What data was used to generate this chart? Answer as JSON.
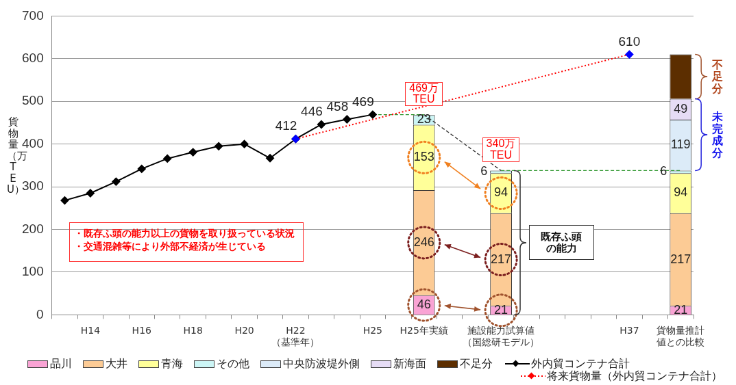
{
  "chart_data": {
    "type": "bar",
    "stacked": true,
    "ylabel": "貨物量（万TEU）",
    "categories": [
      null,
      "H14",
      null,
      "H16",
      null,
      "H18",
      null,
      "H20",
      null,
      "H22（基準年）",
      null,
      null,
      "H25",
      null,
      "H25年実績",
      null,
      null,
      "施設能力試算値（国総研モデル）",
      null,
      null,
      null,
      null,
      "H37",
      null,
      "貨物量推計値との比較"
    ],
    "series": [
      {
        "name": "品川",
        "color": "#f9a3d4",
        "values": [
          null,
          null,
          null,
          null,
          null,
          null,
          null,
          null,
          null,
          null,
          null,
          null,
          null,
          null,
          46,
          null,
          null,
          21,
          null,
          null,
          null,
          null,
          null,
          null,
          21
        ],
        "value_labels": [
          null,
          null,
          null,
          null,
          null,
          null,
          null,
          null,
          null,
          null,
          null,
          null,
          null,
          null,
          "46",
          null,
          null,
          "21",
          null,
          null,
          null,
          null,
          null,
          null,
          "21"
        ]
      },
      {
        "name": "大井",
        "color": "#fccb95",
        "values": [
          null,
          null,
          null,
          null,
          null,
          null,
          null,
          null,
          null,
          null,
          null,
          null,
          null,
          null,
          246,
          null,
          null,
          217,
          null,
          null,
          null,
          null,
          null,
          null,
          217
        ],
        "value_labels": [
          null,
          null,
          null,
          null,
          null,
          null,
          null,
          null,
          null,
          null,
          null,
          null,
          null,
          null,
          "246",
          null,
          null,
          "217",
          null,
          null,
          null,
          null,
          null,
          null,
          "217"
        ]
      },
      {
        "name": "青海",
        "color": "#ffff99",
        "values": [
          null,
          null,
          null,
          null,
          null,
          null,
          null,
          null,
          null,
          null,
          null,
          null,
          null,
          null,
          153,
          null,
          null,
          94,
          null,
          null,
          null,
          null,
          null,
          null,
          94
        ],
        "value_labels": [
          null,
          null,
          null,
          null,
          null,
          null,
          null,
          null,
          null,
          null,
          null,
          null,
          null,
          null,
          "153",
          null,
          null,
          "94",
          null,
          null,
          null,
          null,
          null,
          null,
          "94"
        ]
      },
      {
        "name": "その他",
        "color": "#ccf5f5",
        "values": [
          null,
          null,
          null,
          null,
          null,
          null,
          null,
          null,
          null,
          null,
          null,
          null,
          null,
          null,
          23,
          null,
          null,
          6,
          null,
          null,
          null,
          null,
          null,
          null,
          6
        ],
        "value_labels": [
          null,
          null,
          null,
          null,
          null,
          null,
          null,
          null,
          null,
          null,
          null,
          null,
          null,
          null,
          "23",
          null,
          null,
          "6",
          null,
          null,
          null,
          null,
          null,
          null,
          "6"
        ]
      },
      {
        "name": "中央防波堤外側",
        "color": "#dcebf8",
        "values": [
          null,
          null,
          null,
          null,
          null,
          null,
          null,
          null,
          null,
          null,
          null,
          null,
          null,
          null,
          null,
          null,
          null,
          null,
          null,
          null,
          null,
          null,
          null,
          null,
          119
        ],
        "value_labels": [
          null,
          null,
          null,
          null,
          null,
          null,
          null,
          null,
          null,
          null,
          null,
          null,
          null,
          null,
          null,
          null,
          null,
          null,
          null,
          null,
          null,
          null,
          null,
          null,
          "119"
        ]
      },
      {
        "name": "新海面",
        "color": "#e6dcf5",
        "values": [
          null,
          null,
          null,
          null,
          null,
          null,
          null,
          null,
          null,
          null,
          null,
          null,
          null,
          null,
          null,
          null,
          null,
          null,
          null,
          null,
          null,
          null,
          null,
          null,
          49
        ],
        "value_labels": [
          null,
          null,
          null,
          null,
          null,
          null,
          null,
          null,
          null,
          null,
          null,
          null,
          null,
          null,
          null,
          null,
          null,
          null,
          null,
          null,
          null,
          null,
          null,
          null,
          "49"
        ]
      },
      {
        "name": "不足分",
        "color": "#5c2e00",
        "values": [
          null,
          null,
          null,
          null,
          null,
          null,
          null,
          null,
          null,
          null,
          null,
          null,
          null,
          null,
          null,
          null,
          null,
          null,
          null,
          null,
          null,
          null,
          null,
          null,
          104
        ]
      },
      {
        "name": "外内貿コンテナ合計",
        "type": "line",
        "color": "#000000",
        "marker": "diamond",
        "line_style": "solid",
        "values": [
          268,
          285,
          312,
          342,
          366,
          381,
          395,
          400,
          367,
          412,
          446,
          458,
          469,
          null,
          null,
          null,
          null,
          null,
          null,
          null,
          null,
          null,
          null,
          null,
          null
        ],
        "value_labels": [
          null,
          null,
          null,
          null,
          null,
          null,
          null,
          null,
          null,
          "412",
          "446",
          "458",
          "469",
          null,
          null,
          null,
          null,
          null,
          null,
          null,
          null,
          null,
          null,
          null,
          null
        ]
      },
      {
        "name": "将来貨物量（外内貿コンテナ合計）",
        "type": "line",
        "color": "#ff0000",
        "marker": "diamond",
        "line_style": "dotted",
        "values": [
          null,
          null,
          null,
          null,
          null,
          null,
          null,
          null,
          null,
          412,
          null,
          null,
          null,
          null,
          null,
          null,
          null,
          null,
          null,
          null,
          null,
          null,
          610,
          null,
          null
        ],
        "colors": [
          null,
          null,
          null,
          null,
          null,
          null,
          null,
          null,
          null,
          "#0000ff",
          null,
          null,
          null,
          null,
          null,
          null,
          null,
          null,
          null,
          null,
          null,
          null,
          "#0000ff",
          null,
          null
        ],
        "value_labels": [
          null,
          null,
          null,
          null,
          null,
          null,
          null,
          null,
          null,
          null,
          null,
          null,
          null,
          null,
          null,
          null,
          null,
          null,
          null,
          null,
          null,
          null,
          "610",
          null,
          null
        ]
      },
      {
        "type": "line",
        "color": "#339933",
        "marker": "none",
        "line_style": "dashed",
        "values": [
          null,
          null,
          null,
          null,
          null,
          null,
          null,
          null,
          null,
          null,
          null,
          null,
          469,
          null,
          469,
          null,
          null,
          null,
          null,
          null,
          null,
          null,
          null,
          null,
          null
        ]
      },
      {
        "type": "line",
        "color": "#333333",
        "marker": "none",
        "line_style": "dashed",
        "values": [
          null,
          null,
          null,
          null,
          null,
          null,
          null,
          null,
          null,
          null,
          null,
          null,
          null,
          null,
          469,
          null,
          null,
          338,
          null,
          null,
          null,
          null,
          null,
          null,
          null
        ]
      },
      {
        "type": "line",
        "color": "#339933",
        "marker": "none",
        "line_style": "dashed",
        "values": [
          null,
          null,
          null,
          null,
          null,
          null,
          null,
          null,
          null,
          null,
          null,
          null,
          null,
          null,
          null,
          null,
          null,
          338,
          null,
          null,
          null,
          null,
          null,
          null,
          338
        ]
      }
    ],
    "ylim": [
      0,
      700
    ],
    "yticks": [
      0,
      100,
      200,
      300,
      400,
      500,
      600,
      700
    ],
    "grid": "y",
    "legend": "bottom",
    "annotations": [
      {
        "text": "469万\nTEU",
        "x": "H25年実績",
        "y": 469
      },
      {
        "text": "340万\nTEU",
        "x": "施設能力試算値（国総研モデル）",
        "y": 338
      },
      "・既存ふ頭の能力以上の貨物を取り扱っている状況・交通混雑等により外部不経済が生じている",
      "既存ふ頭の能力",
      "不足分",
      "未完成分"
    ]
  }
}
